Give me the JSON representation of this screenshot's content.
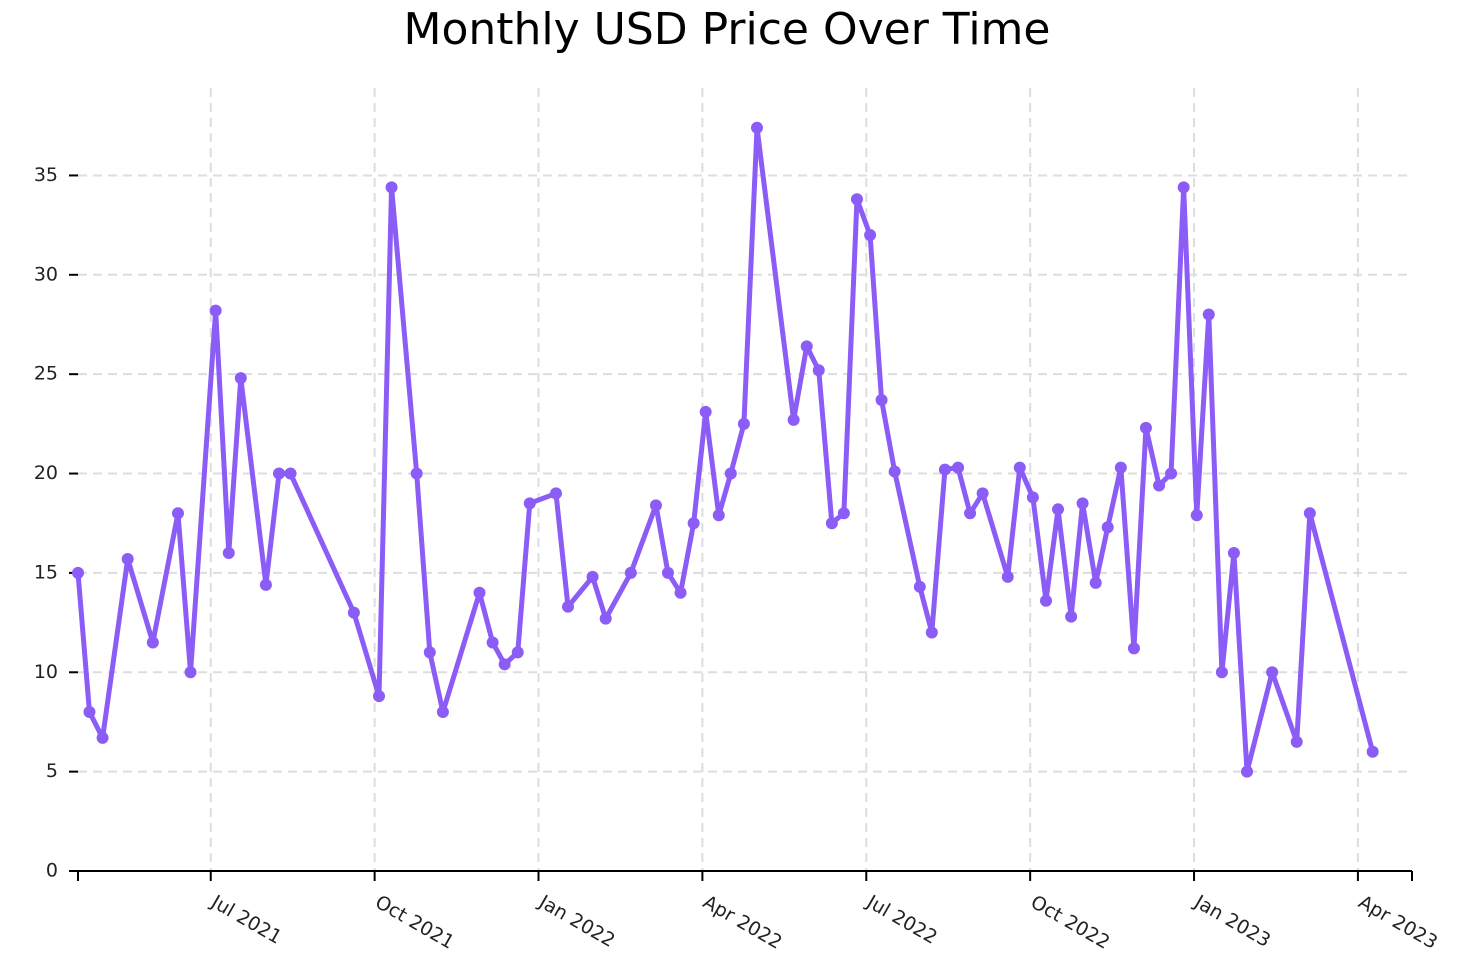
{
  "chart_data": {
    "type": "line",
    "title": "Monthly USD Price Over Time",
    "x": [
      -2.43,
      -2.22,
      -1.98,
      -1.52,
      -1.06,
      -0.6,
      -0.37,
      0.09,
      0.33,
      0.55,
      1.01,
      1.25,
      1.46,
      2.62,
      3.08,
      3.31,
      3.77,
      4.01,
      4.25,
      4.92,
      5.16,
      5.38,
      5.62,
      5.84,
      6.32,
      6.54,
      6.99,
      7.23,
      7.69,
      8.15,
      8.37,
      8.6,
      8.84,
      9.06,
      9.3,
      9.52,
      9.76,
      10.0,
      10.67,
      10.91,
      11.13,
      11.37,
      11.59,
      11.83,
      12.07,
      12.28,
      12.52,
      12.98,
      13.2,
      13.44,
      13.68,
      13.9,
      14.13,
      14.59,
      14.81,
      15.05,
      15.29,
      15.51,
      15.75,
      15.96,
      16.2,
      16.42,
      16.66,
      16.9,
      17.12,
      17.36,
      17.58,
      17.81,
      18.05,
      18.27,
      18.51,
      18.73,
      18.97,
      19.43,
      19.88,
      20.12,
      21.27
    ],
    "series": [
      {
        "color": "#8b5cf6",
        "values": [
          15,
          8,
          6.7,
          15.7,
          11.5,
          18,
          10,
          28.2,
          16,
          24.8,
          14.4,
          20,
          20,
          13,
          8.8,
          34.4,
          20,
          11,
          8,
          14,
          11.5,
          10.4,
          11,
          18.5,
          19,
          13.3,
          14.8,
          12.7,
          15,
          18.4,
          15,
          14,
          17.5,
          23.1,
          17.9,
          20,
          22.5,
          37.4,
          22.7,
          26.4,
          25.2,
          17.5,
          18,
          33.8,
          32,
          23.7,
          20.1,
          14.3,
          12,
          20.2,
          20.3,
          18,
          19,
          14.8,
          20.3,
          18.8,
          13.6,
          18.2,
          12.8,
          18.5,
          14.5,
          17.3,
          20.3,
          11.2,
          22.3,
          19.4,
          20,
          34.4,
          17.9,
          28,
          10,
          16,
          5,
          10,
          6.5,
          18,
          6
        ]
      }
    ],
    "xlim": [
      -2.43,
      21.99
    ],
    "xticks": [
      {
        "value": 0,
        "label": "Jul 2021"
      },
      {
        "value": 3,
        "label": "Oct 2021"
      },
      {
        "value": 6,
        "label": "Jan 2022"
      },
      {
        "value": 9,
        "label": "Apr 2022"
      },
      {
        "value": 12,
        "label": "Jul 2022"
      },
      {
        "value": 15,
        "label": "Oct 2022"
      },
      {
        "value": 18,
        "label": "Jan 2023"
      },
      {
        "value": 21,
        "label": "Apr 2023"
      }
    ],
    "ylim": [
      0,
      39.4
    ],
    "yticks": [
      0,
      5,
      10,
      15,
      20,
      25,
      30,
      35
    ],
    "grid": true
  }
}
